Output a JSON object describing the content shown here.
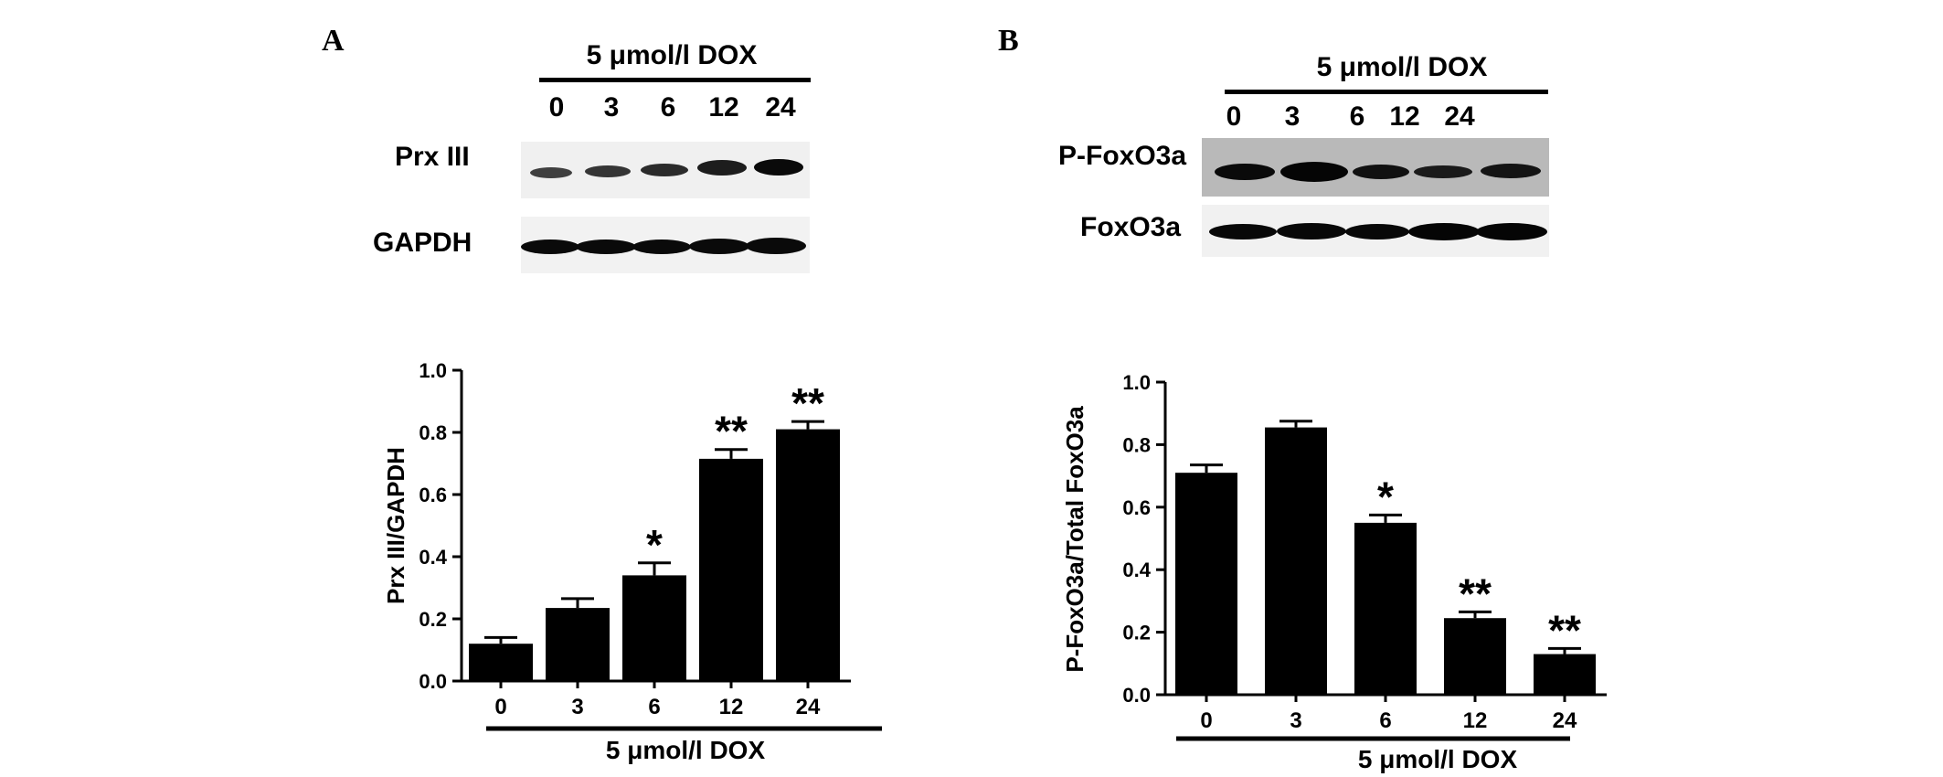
{
  "panel_a": {
    "letter": "A",
    "blot": {
      "header": "5 μmol/l DOX",
      "lanes": [
        "0",
        "3",
        "6",
        "12",
        "24"
      ],
      "rows": [
        {
          "label": "Prx III",
          "bg": "#f0f0f0"
        },
        {
          "label": "GAPDH",
          "bg": "#f2f2f2"
        }
      ]
    }
  },
  "panel_b": {
    "letter": "B",
    "blot": {
      "header": "5 μmol/l DOX",
      "lanes": [
        "0",
        "3",
        "6",
        "12",
        "24"
      ],
      "rows": [
        {
          "label": "P-FoxO3a",
          "bg": "#b9b9b9"
        },
        {
          "label": "FoxO3a",
          "bg": "#f1f1f1"
        }
      ]
    }
  },
  "chart_data": [
    {
      "type": "bar",
      "categories": [
        "0",
        "3",
        "6",
        "12",
        "24"
      ],
      "values": [
        0.12,
        0.235,
        0.34,
        0.715,
        0.81
      ],
      "errors": [
        0.02,
        0.03,
        0.04,
        0.03,
        0.025
      ],
      "significance": [
        "",
        "",
        "*",
        "**",
        "**"
      ],
      "xlabel": "5 μmol/l DOX",
      "ylabel": "Prx III/GAPDH",
      "ylim": [
        0,
        1.0
      ],
      "yticks": [
        "0.0",
        "0.2",
        "0.4",
        "0.6",
        "0.8",
        "1.0"
      ],
      "bar_color": "#000000",
      "grid": false
    },
    {
      "type": "bar",
      "categories": [
        "0",
        "3",
        "6",
        "12",
        "24"
      ],
      "values": [
        0.71,
        0.855,
        0.55,
        0.245,
        0.13
      ],
      "errors": [
        0.025,
        0.02,
        0.025,
        0.02,
        0.018
      ],
      "significance": [
        "",
        "",
        "*",
        "**",
        "**"
      ],
      "xlabel": "5 μmol/l DOX",
      "ylabel": "P-FoxO3a/Total FoxO3a",
      "ylim": [
        0,
        1.0
      ],
      "yticks": [
        "0.0",
        "0.2",
        "0.4",
        "0.6",
        "0.8",
        "1.0"
      ],
      "bar_color": "#000000",
      "grid": false
    }
  ]
}
